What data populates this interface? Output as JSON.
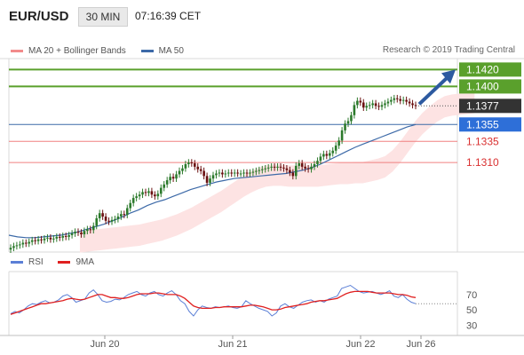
{
  "header": {
    "symbol": "EUR/USD",
    "timeframe": "30 MIN",
    "time": "07:16:39 CET"
  },
  "legend": {
    "ma20_label": "MA 20 + Bollinger Bands",
    "ma20_color": "#f28b8b",
    "ma50_label": "MA 50",
    "ma50_color": "#3d6aa8",
    "copyright": "Research © 2019 Trading Central"
  },
  "rsi_legend": {
    "rsi_label": "RSI",
    "rsi_color": "#5b7fd6",
    "ma_label": "9MA",
    "ma_color": "#e02020"
  },
  "colors": {
    "up_candle": "#2c7a2c",
    "down_candle": "#6a1010",
    "resistance_line": "#5aa02c",
    "support_line": "#f08080",
    "current_price_bg": "#333333",
    "ma50_price_bg": "#2e6fd8",
    "arrow": "#2d5aa0",
    "band_fill": "#fde3e3"
  },
  "chart_data": [
    {
      "type": "candlestick",
      "title": "EUR/USD",
      "x_ticks": [
        "Jun 20",
        "Jun 21",
        "Jun 22",
        "Jun 26"
      ],
      "price_levels": [
        {
          "name": "resistance",
          "value": 1.142,
          "label": "1.1420"
        },
        {
          "name": "resistance",
          "value": 1.14,
          "label": "1.1400"
        },
        {
          "name": "last price",
          "value": 1.1377,
          "label": "1.1377"
        },
        {
          "name": "MA 50",
          "value": 1.1355,
          "label": "1.1355"
        },
        {
          "name": "support",
          "value": 1.1335,
          "label": "1.1335"
        },
        {
          "name": "support",
          "value": 1.131,
          "label": "1.1310"
        }
      ],
      "ylim": [
        1.1204,
        1.1433
      ],
      "close": [
        1.1209,
        1.1211,
        1.1212,
        1.1213,
        1.1215,
        1.1214,
        1.1216,
        1.1218,
        1.1217,
        1.1219,
        1.1218,
        1.122,
        1.1221,
        1.1219,
        1.122,
        1.1222,
        1.1221,
        1.1223,
        1.1222,
        1.1224,
        1.1226,
        1.1228,
        1.1227,
        1.1225,
        1.1229,
        1.1231,
        1.123,
        1.1235,
        1.1244,
        1.125,
        1.1246,
        1.1241,
        1.124,
        1.1242,
        1.1243,
        1.1246,
        1.1249,
        1.1248,
        1.1256,
        1.1262,
        1.1268,
        1.127,
        1.1272,
        1.1275,
        1.1274,
        1.1276,
        1.1272,
        1.127,
        1.1273,
        1.128,
        1.1284,
        1.1289,
        1.1293,
        1.1291,
        1.1296,
        1.13,
        1.1303,
        1.1308,
        1.131,
        1.1309,
        1.1305,
        1.1302,
        1.13,
        1.1294,
        1.1286,
        1.1291,
        1.1295,
        1.1297,
        1.1298,
        1.1296,
        1.1297,
        1.1298,
        1.1297,
        1.1298,
        1.1297,
        1.1297,
        1.1298,
        1.1297,
        1.1298,
        1.1299,
        1.13,
        1.1301,
        1.1302,
        1.1303,
        1.1304,
        1.1305,
        1.1304,
        1.1305,
        1.1304,
        1.1303,
        1.1301,
        1.1298,
        1.1294,
        1.1306,
        1.1309,
        1.1305,
        1.1303,
        1.1302,
        1.1305,
        1.1308,
        1.1312,
        1.1317,
        1.132,
        1.1318,
        1.1321,
        1.1324,
        1.133,
        1.1336,
        1.1348,
        1.1356,
        1.1359,
        1.1366,
        1.1378,
        1.1383,
        1.1381,
        1.1375,
        1.1377,
        1.1378,
        1.138,
        1.1377,
        1.1376,
        1.1378,
        1.138,
        1.1382,
        1.1384,
        1.1386,
        1.1385,
        1.1383,
        1.1384,
        1.1382,
        1.138,
        1.1378,
        1.1377
      ],
      "ma20": [
        1.1216,
        1.1217,
        1.1218,
        1.1219,
        1.122,
        1.1221,
        1.1222,
        1.1223,
        1.1224,
        1.1226,
        1.1228,
        1.123,
        1.1233,
        1.1236,
        1.124,
        1.1244,
        1.1249,
        1.1254,
        1.1259,
        1.1264,
        1.127,
        1.1276,
        1.1282,
        1.1287,
        1.1291,
        1.1294,
        1.1295,
        1.1295,
        1.1294,
        1.1294,
        1.1294,
        1.1294,
        1.1294,
        1.1295,
        1.1296,
        1.1297,
        1.1297,
        1.1298,
        1.1298,
        1.13,
        1.1302,
        1.1305,
        1.1312,
        1.1322,
        1.1334,
        1.1346,
        1.1356,
        1.1364,
        1.1371,
        1.1376,
        1.1378,
        1.1379,
        1.138,
        1.1381
      ],
      "ma50": [
        1.1224,
        1.1222,
        1.1221,
        1.1221,
        1.1222,
        1.1223,
        1.1224,
        1.1226,
        1.1228,
        1.1231,
        1.1234,
        1.1237,
        1.1241,
        1.1245,
        1.125,
        1.1254,
        1.1259,
        1.1263,
        1.1266,
        1.127,
        1.1274,
        1.1278,
        1.1281,
        1.1284,
        1.1287,
        1.1289,
        1.1291,
        1.1292,
        1.1293,
        1.1294,
        1.1295,
        1.1296,
        1.1297,
        1.1299,
        1.1301,
        1.1304,
        1.1308,
        1.1313,
        1.1318,
        1.1323,
        1.1328,
        1.1332,
        1.1336,
        1.134,
        1.1344,
        1.1348,
        1.1352,
        1.1355
      ]
    },
    {
      "type": "line",
      "title": "RSI",
      "y_ticks": [
        70,
        50,
        30
      ],
      "ylim": [
        20,
        100
      ],
      "series": [
        {
          "name": "RSI",
          "values": [
            45,
            48,
            46,
            50,
            55,
            58,
            57,
            60,
            62,
            59,
            60,
            63,
            68,
            70,
            66,
            60,
            62,
            64,
            72,
            76,
            70,
            62,
            60,
            61,
            64,
            63,
            66,
            70,
            72,
            74,
            70,
            68,
            72,
            74,
            70,
            68,
            72,
            75,
            70,
            62,
            58,
            48,
            42,
            50,
            55,
            53,
            52,
            54,
            53,
            54,
            55,
            53,
            52,
            54,
            62,
            58,
            55,
            52,
            50,
            48,
            42,
            46,
            55,
            58,
            54,
            52,
            56,
            60,
            62,
            63,
            60,
            62,
            60,
            64,
            66,
            68,
            78,
            80,
            82,
            78,
            74,
            72,
            73,
            74,
            72,
            70,
            72,
            75,
            68,
            66,
            70,
            64,
            60,
            58
          ]
        },
        {
          "name": "9MA",
          "values": [
            44,
            46,
            48,
            50,
            52,
            54,
            56,
            58,
            58,
            59,
            60,
            61,
            62,
            64,
            65,
            64,
            63,
            64,
            66,
            68,
            70,
            70,
            68,
            66,
            66,
            65,
            65,
            66,
            68,
            70,
            71,
            71,
            71,
            72,
            72,
            71,
            70,
            70,
            70,
            68,
            65,
            60,
            55,
            53,
            52,
            52,
            52,
            53,
            53,
            54,
            54,
            54,
            54,
            54,
            55,
            56,
            56,
            55,
            54,
            52,
            50,
            50,
            51,
            53,
            54,
            55,
            56,
            57,
            58,
            60,
            61,
            62,
            62,
            63,
            64,
            65,
            68,
            71,
            73,
            74,
            74,
            74,
            74,
            73,
            72,
            72,
            72,
            72,
            71,
            70,
            70,
            69,
            67,
            66
          ]
        }
      ]
    }
  ]
}
